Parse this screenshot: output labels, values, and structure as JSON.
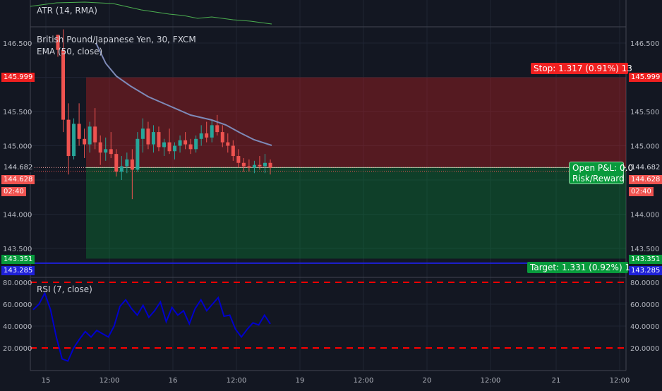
{
  "atr": {
    "title": "ATR (14, RMA)",
    "color": "#4caf50"
  },
  "price": {
    "title": "British Pound/Japanese Yen, 30, FXCM",
    "ema_title": "EMA (50, close)",
    "ema_color": "#7e8ab8",
    "up_color": "#26a69a",
    "down_color": "#ef5350",
    "ticks": [
      "146.500",
      "145.999",
      "145.500",
      "145.000",
      "144.682",
      "144.628",
      "02:40",
      "144.000",
      "143.500",
      "143.351",
      "143.285"
    ],
    "plain_ticks": [
      "146.500",
      "145.500",
      "145.000",
      "144.000",
      "143.500"
    ],
    "y_range": [
      143.2,
      146.7
    ],
    "tags": {
      "stop_price": "145.999",
      "bid": "144.682",
      "last": "144.628",
      "countdown": "02:40",
      "target_price": "143.351",
      "blue_price": "143.285"
    },
    "stop_label": "Stop: 1.317 (0.91%) 13",
    "pnl_label": "Open P&L: 0.0",
    "rr_label": "Risk/Reward",
    "target_label": "Target: 1.331 (0.92%) 1",
    "stop_price_value": 145.999,
    "entry_value": 144.682,
    "target_price_value": 143.351,
    "blue_line_value": 143.285,
    "candles": [
      [
        146.62,
        146.62,
        146.3,
        146.4
      ],
      [
        146.4,
        146.7,
        145.2,
        145.38
      ],
      [
        145.38,
        145.62,
        144.58,
        144.85
      ],
      [
        144.85,
        145.4,
        144.8,
        145.32
      ],
      [
        145.32,
        145.62,
        145.0,
        145.1
      ],
      [
        145.1,
        145.25,
        144.82,
        145.02
      ],
      [
        145.02,
        145.35,
        144.9,
        145.28
      ],
      [
        145.28,
        145.55,
        144.95,
        145.05
      ],
      [
        145.05,
        145.15,
        144.72,
        144.9
      ],
      [
        144.9,
        145.12,
        144.78,
        144.95
      ],
      [
        144.95,
        145.2,
        144.82,
        144.88
      ],
      [
        144.88,
        144.95,
        144.55,
        144.62
      ],
      [
        144.62,
        144.85,
        144.5,
        144.7
      ],
      [
        144.7,
        144.9,
        144.6,
        144.8
      ],
      [
        144.8,
        144.95,
        144.22,
        144.65
      ],
      [
        144.65,
        145.2,
        144.62,
        145.1
      ],
      [
        145.1,
        145.4,
        144.9,
        145.25
      ],
      [
        145.25,
        145.35,
        144.95,
        145.02
      ],
      [
        145.02,
        145.3,
        144.9,
        145.2
      ],
      [
        145.2,
        145.28,
        144.92,
        144.98
      ],
      [
        144.98,
        145.1,
        144.85,
        145.05
      ],
      [
        145.05,
        145.25,
        144.88,
        144.92
      ],
      [
        144.92,
        145.05,
        144.8,
        145.0
      ],
      [
        145.0,
        145.15,
        144.9,
        145.08
      ],
      [
        145.08,
        145.2,
        144.95,
        145.02
      ],
      [
        145.02,
        145.1,
        144.88,
        144.95
      ],
      [
        144.95,
        145.15,
        144.9,
        145.1
      ],
      [
        145.1,
        145.3,
        145.0,
        145.18
      ],
      [
        145.18,
        145.35,
        145.05,
        145.12
      ],
      [
        145.12,
        145.38,
        145.05,
        145.3
      ],
      [
        145.3,
        145.45,
        145.15,
        145.2
      ],
      [
        145.2,
        145.3,
        144.98,
        145.05
      ],
      [
        145.05,
        145.18,
        144.9,
        145.0
      ],
      [
        145.0,
        145.08,
        144.78,
        144.85
      ],
      [
        144.85,
        144.95,
        144.68,
        144.75
      ],
      [
        144.75,
        144.82,
        144.62,
        144.7
      ],
      [
        144.7,
        144.8,
        144.62,
        144.68
      ],
      [
        144.68,
        144.78,
        144.6,
        144.72
      ],
      [
        144.72,
        144.85,
        144.65,
        144.7
      ],
      [
        144.7,
        144.88,
        144.6,
        144.75
      ],
      [
        144.75,
        144.8,
        144.58,
        144.68
      ]
    ]
  },
  "rsi": {
    "title": "RSI (7, close)",
    "color": "#0000cc",
    "level_color": "#ff0000",
    "upper": 80,
    "lower": 20,
    "ticks": [
      "80.0000",
      "60.0000",
      "40.0000",
      "20.0000"
    ],
    "values": [
      55,
      60,
      70,
      55,
      30,
      10,
      8,
      20,
      28,
      35,
      30,
      36,
      33,
      30,
      40,
      58,
      64,
      56,
      50,
      59,
      48,
      54,
      62,
      44,
      57,
      50,
      54,
      42,
      56,
      64,
      54,
      60,
      66,
      49,
      50,
      37,
      30,
      37,
      43,
      41,
      50,
      42
    ]
  },
  "time_axis": [
    "15",
    "12:00",
    "16",
    "12:00",
    "19",
    "12:00",
    "20",
    "12:00",
    "21",
    "12:00"
  ]
}
